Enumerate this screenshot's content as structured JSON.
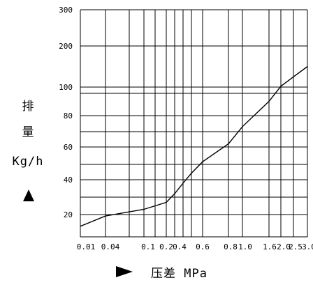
{
  "chart_data": {
    "type": "line",
    "ylabel_lines": [
      "排",
      "量",
      "Kg/h"
    ],
    "xlabel": "压差 MPa",
    "x_tick_labels": [
      "0.01",
      "0.04",
      "0.1",
      "0.2",
      "0.4",
      "0.6",
      "0.8",
      "1.0",
      "1.6",
      "2.0",
      "2.5",
      "3.0"
    ],
    "y_tick_labels": [
      "20",
      "40",
      "60",
      "80",
      "100",
      "200",
      "300"
    ],
    "grid": true,
    "series": [
      {
        "points": [
          {
            "x": 0.01,
            "y": 12
          },
          {
            "x": 0.04,
            "y": 19
          },
          {
            "x": 0.1,
            "y": 23
          },
          {
            "x": 0.15,
            "y": 25
          },
          {
            "x": 0.2,
            "y": 27
          },
          {
            "x": 0.3,
            "y": 32
          },
          {
            "x": 0.4,
            "y": 38
          },
          {
            "x": 0.5,
            "y": 44
          },
          {
            "x": 0.6,
            "y": 51
          },
          {
            "x": 0.8,
            "y": 62
          },
          {
            "x": 1.0,
            "y": 73
          },
          {
            "x": 1.6,
            "y": 90
          },
          {
            "x": 2.0,
            "y": 102
          },
          {
            "x": 2.5,
            "y": 125
          },
          {
            "x": 3.0,
            "y": 150
          }
        ]
      }
    ]
  }
}
